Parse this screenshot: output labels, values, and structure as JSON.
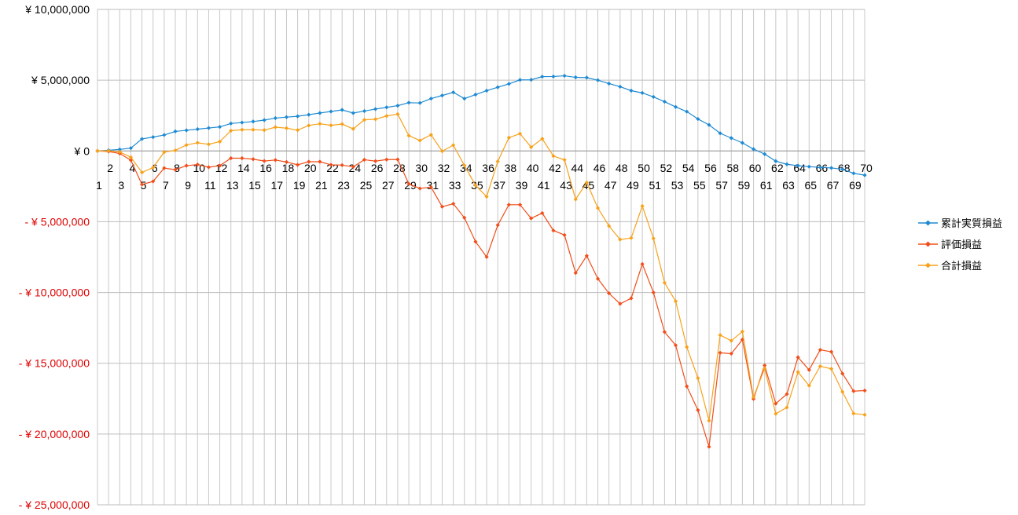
{
  "chart_data": {
    "type": "line",
    "title": "",
    "xlabel": "",
    "ylabel": "",
    "x": [
      1,
      2,
      3,
      4,
      5,
      6,
      7,
      8,
      9,
      10,
      11,
      12,
      13,
      14,
      15,
      16,
      17,
      18,
      19,
      20,
      21,
      22,
      23,
      24,
      25,
      26,
      27,
      28,
      29,
      30,
      31,
      32,
      33,
      34,
      35,
      36,
      37,
      38,
      39,
      40,
      41,
      42,
      43,
      44,
      45,
      46,
      47,
      48,
      49,
      50,
      51,
      52,
      53,
      54,
      55,
      56,
      57,
      58,
      59,
      60,
      61,
      62,
      63,
      64,
      65,
      66,
      67,
      68,
      69,
      70
    ],
    "ylim": [
      -25000000,
      10000000
    ],
    "yticks": [
      10000000,
      5000000,
      0,
      -5000000,
      -10000000,
      -15000000,
      -20000000,
      -25000000
    ],
    "ytick_labels": [
      "¥ 10,000,000",
      "¥ 5,000,000",
      "¥ 0",
      "- ¥ 5,000,000",
      "- ¥ 10,000,000",
      "- ¥ 15,000,000",
      "- ¥ 20,000,000",
      "- ¥ 25,000,000"
    ],
    "grid": true,
    "legend_position": "right",
    "series": [
      {
        "name": "累計実質損益",
        "color": "#1F8AD2",
        "values": [
          0,
          50000,
          110000,
          200000,
          850000,
          980000,
          1130000,
          1380000,
          1460000,
          1540000,
          1620000,
          1700000,
          1940000,
          2010000,
          2080000,
          2180000,
          2320000,
          2390000,
          2450000,
          2560000,
          2680000,
          2790000,
          2900000,
          2680000,
          2820000,
          2960000,
          3080000,
          3200000,
          3410000,
          3390000,
          3700000,
          3920000,
          4140000,
          3700000,
          3980000,
          4260000,
          4500000,
          4740000,
          5020000,
          5030000,
          5250000,
          5260000,
          5310000,
          5200000,
          5180000,
          5000000,
          4760000,
          4540000,
          4260000,
          4100000,
          3820000,
          3480000,
          3110000,
          2780000,
          2260000,
          1840000,
          1250000,
          910000,
          570000,
          130000,
          -220000,
          -720000,
          -940000,
          -1040000,
          -1110000,
          -1160000,
          -1200000,
          -1290000,
          -1580000,
          -1710000
        ]
      },
      {
        "name": "評価損益",
        "color": "#F04E1A",
        "values": [
          0,
          -40000,
          -180000,
          -650000,
          -2370000,
          -2150000,
          -1210000,
          -1320000,
          -1040000,
          -960000,
          -1150000,
          -1040000,
          -510000,
          -510000,
          -580000,
          -710000,
          -640000,
          -780000,
          -980000,
          -760000,
          -760000,
          -980000,
          -1000000,
          -1120000,
          -620000,
          -720000,
          -610000,
          -600000,
          -2330000,
          -2650000,
          -2560000,
          -3940000,
          -3730000,
          -4720000,
          -6410000,
          -7490000,
          -5240000,
          -3800000,
          -3800000,
          -4760000,
          -4390000,
          -5620000,
          -5940000,
          -8620000,
          -7410000,
          -9030000,
          -10060000,
          -10800000,
          -10410000,
          -7990000,
          -10000000,
          -12790000,
          -13730000,
          -16630000,
          -18310000,
          -20900000,
          -14260000,
          -14320000,
          -13330000,
          -17520000,
          -15150000,
          -17850000,
          -17180000,
          -14580000,
          -15470000,
          -14050000,
          -14190000,
          -15730000,
          -16970000,
          -16930000
        ]
      },
      {
        "name": "合計損益",
        "color": "#F7A11A",
        "values": [
          0,
          10000,
          -70000,
          -440000,
          -1520000,
          -1170000,
          -80000,
          40000,
          420000,
          580000,
          470000,
          660000,
          1430000,
          1500000,
          1500000,
          1470000,
          1680000,
          1610000,
          1470000,
          1800000,
          1920000,
          1810000,
          1900000,
          1560000,
          2200000,
          2240000,
          2470000,
          2600000,
          1080000,
          740000,
          1140000,
          -20000,
          410000,
          -1020000,
          -2430000,
          -3230000,
          -740000,
          940000,
          1220000,
          270000,
          860000,
          -360000,
          -630000,
          -3420000,
          -2230000,
          -4030000,
          -5300000,
          -6260000,
          -6150000,
          -3890000,
          -6180000,
          -9310000,
          -10620000,
          -13850000,
          -16050000,
          -19060000,
          -13010000,
          -13410000,
          -12760000,
          -17390000,
          -15370000,
          -18570000,
          -18120000,
          -15620000,
          -16580000,
          -15210000,
          -15390000,
          -17020000,
          -18550000,
          -18640000
        ]
      }
    ]
  }
}
